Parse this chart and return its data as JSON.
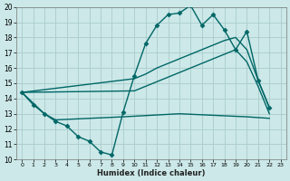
{
  "xlabel": "Humidex (Indice chaleur)",
  "bg_color": "#cce8e8",
  "grid_color": "#aacccc",
  "line_color": "#006666",
  "xlim": [
    -0.5,
    23.5
  ],
  "ylim": [
    10,
    20
  ],
  "xticks": [
    0,
    1,
    2,
    3,
    4,
    5,
    6,
    7,
    8,
    9,
    10,
    11,
    12,
    13,
    14,
    15,
    16,
    17,
    18,
    19,
    20,
    21,
    22,
    23
  ],
  "yticks": [
    10,
    11,
    12,
    13,
    14,
    15,
    16,
    17,
    18,
    19,
    20
  ],
  "lines": [
    {
      "x": [
        0,
        1,
        2,
        3,
        4,
        5,
        6,
        7,
        8,
        9,
        10,
        11,
        12,
        13,
        14,
        15,
        16,
        17,
        18,
        19,
        20,
        21,
        22
      ],
      "y": [
        14.4,
        13.6,
        13.0,
        12.5,
        12.2,
        11.5,
        11.2,
        10.5,
        10.3,
        13.1,
        15.5,
        17.6,
        18.8,
        19.5,
        19.6,
        20.1,
        18.8,
        19.5,
        18.5,
        17.2,
        18.4,
        15.2,
        13.4
      ],
      "marker": "D",
      "markersize": 2.5,
      "linewidth": 1.0
    },
    {
      "x": [
        0,
        10,
        11,
        12,
        13,
        14,
        15,
        16,
        17,
        18,
        19,
        20,
        21,
        22
      ],
      "y": [
        14.4,
        15.3,
        15.6,
        16.0,
        16.3,
        16.6,
        16.9,
        17.2,
        17.5,
        17.8,
        18.0,
        17.2,
        15.2,
        13.4
      ],
      "marker": null,
      "markersize": 0,
      "linewidth": 1.0
    },
    {
      "x": [
        0,
        10,
        11,
        12,
        13,
        14,
        15,
        16,
        17,
        18,
        19,
        20,
        21,
        22
      ],
      "y": [
        14.4,
        14.5,
        14.8,
        15.1,
        15.4,
        15.7,
        16.0,
        16.3,
        16.6,
        16.9,
        17.2,
        16.4,
        14.8,
        13.0
      ],
      "marker": null,
      "markersize": 0,
      "linewidth": 1.0
    },
    {
      "x": [
        0,
        2,
        3,
        9,
        14,
        20,
        22
      ],
      "y": [
        14.4,
        13.0,
        12.6,
        12.8,
        13.0,
        12.8,
        12.7
      ],
      "marker": null,
      "markersize": 0,
      "linewidth": 1.0
    }
  ]
}
